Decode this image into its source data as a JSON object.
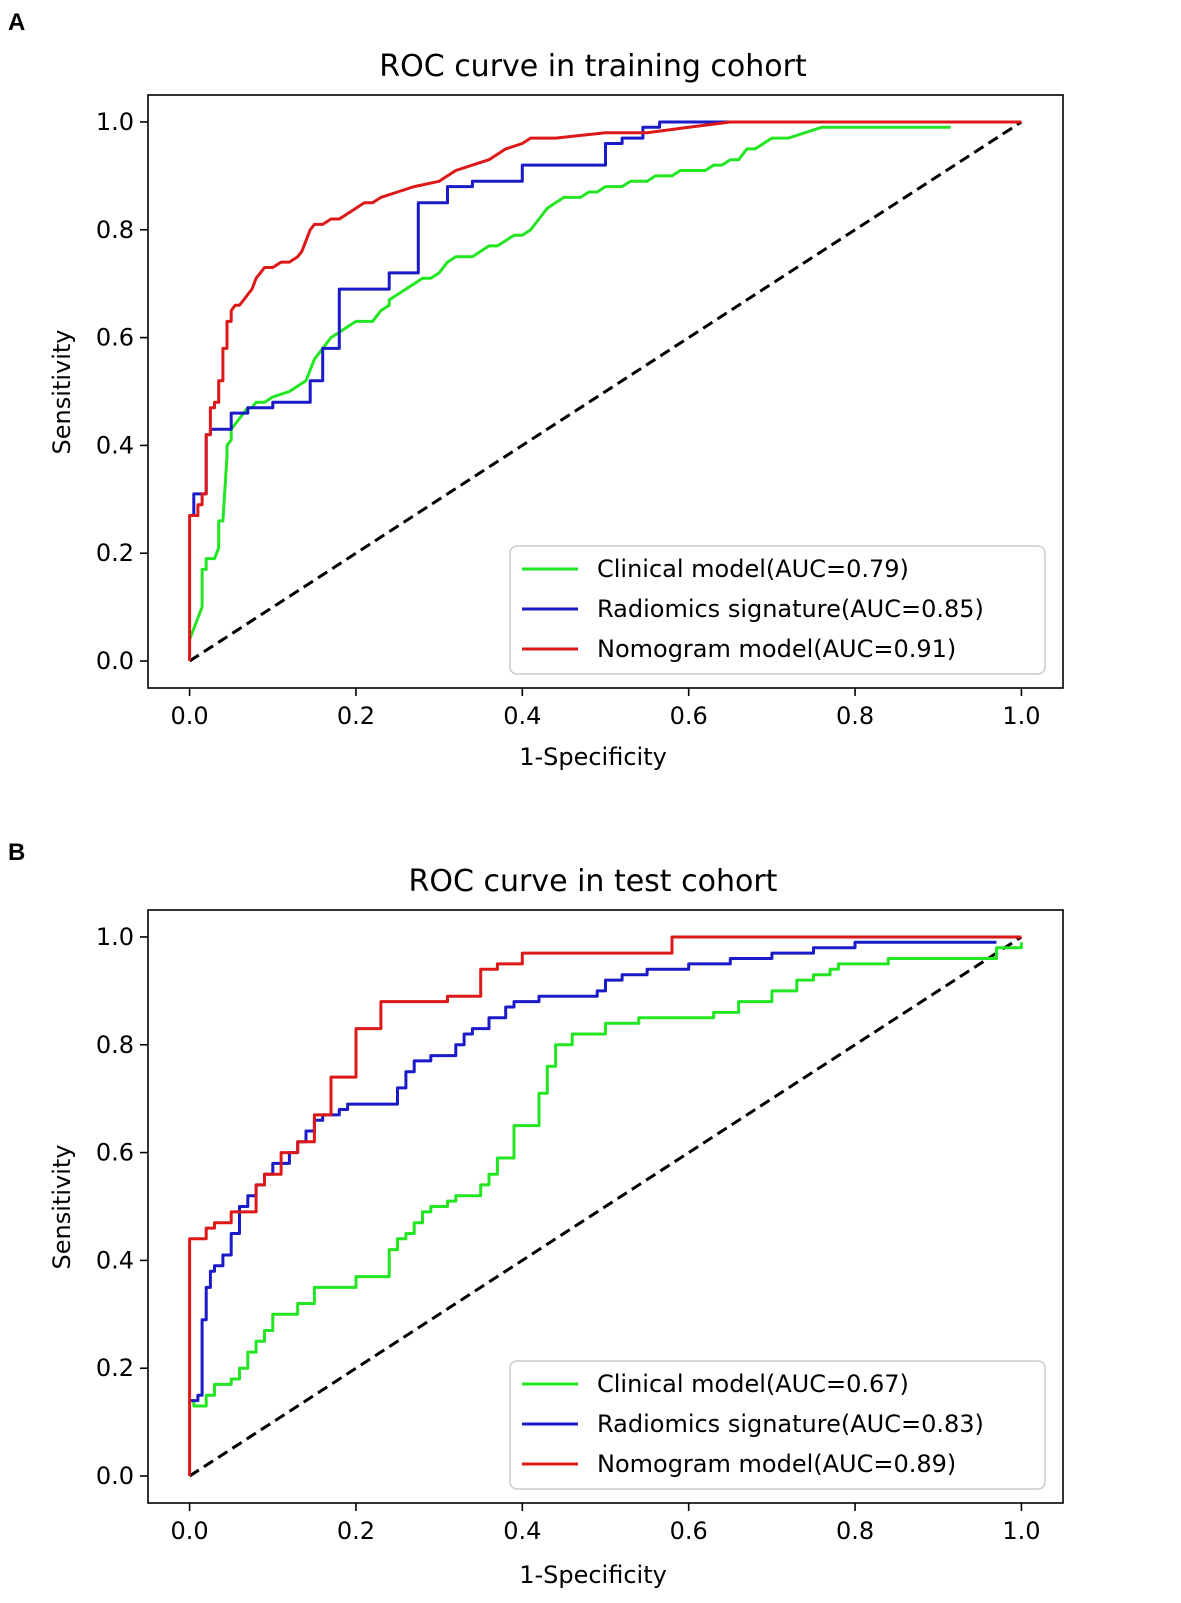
{
  "chart_data": [
    {
      "type": "line",
      "panel_label": "A",
      "title": "ROC curve in training cohort",
      "xlabel": "1-Specificity",
      "ylabel": "Sensitivity",
      "xlim": [
        -0.05,
        1.05
      ],
      "ylim": [
        -0.05,
        1.05
      ],
      "xticks": [
        "0.0",
        "0.2",
        "0.4",
        "0.6",
        "0.8",
        "1.0"
      ],
      "yticks": [
        "0.0",
        "0.2",
        "0.4",
        "0.6",
        "0.8",
        "1.0"
      ],
      "grid": false,
      "legend_position": "bottom-right",
      "reference_line": {
        "x": [
          0,
          1
        ],
        "y": [
          0,
          1
        ],
        "color": "#000000",
        "style": "dashed"
      },
      "series": [
        {
          "name": "Clinical model(AUC=0.79)",
          "color": "#22e622",
          "x": [
            0,
            0.005,
            0.01,
            0.015,
            0.015,
            0.02,
            0.02,
            0.03,
            0.035,
            0.035,
            0.04,
            0.045,
            0.045,
            0.05,
            0.05,
            0.06,
            0.065,
            0.07,
            0.075,
            0.08,
            0.085,
            0.09,
            0.1,
            0.12,
            0.14,
            0.15,
            0.16,
            0.17,
            0.18,
            0.19,
            0.2,
            0.21,
            0.22,
            0.23,
            0.24,
            0.24,
            0.25,
            0.26,
            0.27,
            0.28,
            0.29,
            0.3,
            0.31,
            0.32,
            0.33,
            0.34,
            0.35,
            0.36,
            0.37,
            0.38,
            0.39,
            0.4,
            0.41,
            0.42,
            0.43,
            0.44,
            0.45,
            0.46,
            0.47,
            0.48,
            0.49,
            0.5,
            0.51,
            0.52,
            0.53,
            0.54,
            0.55,
            0.56,
            0.57,
            0.58,
            0.59,
            0.6,
            0.61,
            0.62,
            0.63,
            0.64,
            0.65,
            0.66,
            0.67,
            0.68,
            0.69,
            0.7,
            0.72,
            0.74,
            0.76,
            0.78,
            0.8,
            0.85,
            0.915
          ],
          "y": [
            0.04,
            0.06,
            0.08,
            0.1,
            0.17,
            0.17,
            0.19,
            0.19,
            0.21,
            0.26,
            0.26,
            0.38,
            0.4,
            0.41,
            0.43,
            0.45,
            0.46,
            0.47,
            0.47,
            0.48,
            0.48,
            0.48,
            0.49,
            0.5,
            0.52,
            0.56,
            0.58,
            0.6,
            0.61,
            0.62,
            0.63,
            0.63,
            0.63,
            0.65,
            0.66,
            0.67,
            0.68,
            0.69,
            0.7,
            0.71,
            0.71,
            0.72,
            0.74,
            0.75,
            0.75,
            0.75,
            0.76,
            0.77,
            0.77,
            0.78,
            0.79,
            0.79,
            0.8,
            0.82,
            0.84,
            0.85,
            0.86,
            0.86,
            0.86,
            0.87,
            0.87,
            0.88,
            0.88,
            0.88,
            0.89,
            0.89,
            0.89,
            0.9,
            0.9,
            0.9,
            0.91,
            0.91,
            0.91,
            0.91,
            0.92,
            0.92,
            0.93,
            0.93,
            0.95,
            0.95,
            0.96,
            0.97,
            0.97,
            0.98,
            0.99,
            0.99,
            0.99,
            0.99,
            0.99
          ]
        },
        {
          "name": "Radiomics signature(AUC=0.85)",
          "color": "#1a1ac8",
          "x": [
            0,
            0.005,
            0.005,
            0.02,
            0.02,
            0.025,
            0.025,
            0.05,
            0.05,
            0.07,
            0.07,
            0.1,
            0.1,
            0.145,
            0.145,
            0.16,
            0.16,
            0.18,
            0.18,
            0.24,
            0.24,
            0.275,
            0.275,
            0.31,
            0.31,
            0.34,
            0.34,
            0.4,
            0.4,
            0.5,
            0.5,
            0.52,
            0.52,
            0.545,
            0.545,
            0.565,
            0.565,
            1.0
          ],
          "y": [
            0.27,
            0.27,
            0.31,
            0.31,
            0.42,
            0.42,
            0.43,
            0.43,
            0.46,
            0.46,
            0.47,
            0.47,
            0.48,
            0.48,
            0.52,
            0.52,
            0.58,
            0.58,
            0.69,
            0.69,
            0.72,
            0.72,
            0.85,
            0.85,
            0.88,
            0.88,
            0.89,
            0.89,
            0.92,
            0.92,
            0.96,
            0.96,
            0.97,
            0.97,
            0.99,
            0.99,
            1.0,
            1.0
          ]
        },
        {
          "name": "Nomogram model(AUC=0.91)",
          "color": "#dd1818",
          "x": [
            0,
            0,
            0.01,
            0.01,
            0.015,
            0.015,
            0.02,
            0.02,
            0.025,
            0.025,
            0.03,
            0.03,
            0.035,
            0.035,
            0.04,
            0.04,
            0.045,
            0.045,
            0.05,
            0.05,
            0.055,
            0.06,
            0.065,
            0.07,
            0.075,
            0.08,
            0.085,
            0.09,
            0.1,
            0.11,
            0.12,
            0.13,
            0.135,
            0.14,
            0.145,
            0.15,
            0.16,
            0.17,
            0.18,
            0.19,
            0.2,
            0.21,
            0.22,
            0.23,
            0.25,
            0.27,
            0.3,
            0.32,
            0.34,
            0.36,
            0.38,
            0.4,
            0.41,
            0.44,
            0.5,
            0.55,
            0.6,
            0.65,
            1.0
          ],
          "y": [
            0,
            0.27,
            0.27,
            0.29,
            0.29,
            0.31,
            0.31,
            0.42,
            0.42,
            0.47,
            0.47,
            0.48,
            0.48,
            0.52,
            0.52,
            0.58,
            0.58,
            0.63,
            0.63,
            0.65,
            0.66,
            0.66,
            0.67,
            0.68,
            0.69,
            0.71,
            0.72,
            0.73,
            0.73,
            0.74,
            0.74,
            0.75,
            0.76,
            0.78,
            0.8,
            0.81,
            0.81,
            0.82,
            0.82,
            0.83,
            0.84,
            0.85,
            0.85,
            0.86,
            0.87,
            0.88,
            0.89,
            0.91,
            0.92,
            0.93,
            0.95,
            0.96,
            0.97,
            0.97,
            0.98,
            0.98,
            0.99,
            1.0,
            1.0
          ]
        }
      ]
    },
    {
      "type": "line",
      "panel_label": "B",
      "title": "ROC curve in test cohort",
      "xlabel": "1-Specificity",
      "ylabel": "Sensitivity",
      "xlim": [
        -0.05,
        1.05
      ],
      "ylim": [
        -0.05,
        1.05
      ],
      "xticks": [
        "0.0",
        "0.2",
        "0.4",
        "0.6",
        "0.8",
        "1.0"
      ],
      "yticks": [
        "0.0",
        "0.2",
        "0.4",
        "0.6",
        "0.8",
        "1.0"
      ],
      "grid": false,
      "legend_position": "bottom-right",
      "reference_line": {
        "x": [
          0,
          1
        ],
        "y": [
          0,
          1
        ],
        "color": "#000000",
        "style": "dashed"
      },
      "series": [
        {
          "name": "Clinical model(AUC=0.67)",
          "color": "#22e622",
          "x": [
            0,
            0.005,
            0.005,
            0.02,
            0.02,
            0.03,
            0.03,
            0.05,
            0.05,
            0.06,
            0.06,
            0.07,
            0.07,
            0.08,
            0.08,
            0.09,
            0.09,
            0.1,
            0.1,
            0.13,
            0.13,
            0.15,
            0.15,
            0.18,
            0.18,
            0.2,
            0.2,
            0.24,
            0.24,
            0.25,
            0.25,
            0.26,
            0.26,
            0.27,
            0.27,
            0.28,
            0.28,
            0.29,
            0.29,
            0.3,
            0.3,
            0.31,
            0.31,
            0.32,
            0.32,
            0.35,
            0.35,
            0.36,
            0.36,
            0.37,
            0.37,
            0.38,
            0.38,
            0.39,
            0.39,
            0.42,
            0.42,
            0.43,
            0.43,
            0.44,
            0.44,
            0.45,
            0.45,
            0.46,
            0.46,
            0.47,
            0.47,
            0.5,
            0.5,
            0.54,
            0.54,
            0.6,
            0.6,
            0.63,
            0.63,
            0.66,
            0.66,
            0.7,
            0.7,
            0.73,
            0.73,
            0.75,
            0.75,
            0.76,
            0.76,
            0.77,
            0.77,
            0.78,
            0.78,
            0.8,
            0.8,
            0.82,
            0.82,
            0.84,
            0.84,
            0.86,
            0.86,
            0.97,
            0.97,
            1.0,
            1.0
          ],
          "y": [
            0.14,
            0.14,
            0.13,
            0.13,
            0.15,
            0.15,
            0.17,
            0.17,
            0.18,
            0.18,
            0.2,
            0.2,
            0.23,
            0.23,
            0.25,
            0.25,
            0.27,
            0.27,
            0.3,
            0.3,
            0.32,
            0.32,
            0.35,
            0.35,
            0.35,
            0.35,
            0.37,
            0.37,
            0.42,
            0.42,
            0.44,
            0.44,
            0.45,
            0.45,
            0.47,
            0.47,
            0.49,
            0.49,
            0.5,
            0.5,
            0.5,
            0.5,
            0.51,
            0.51,
            0.52,
            0.52,
            0.54,
            0.54,
            0.56,
            0.56,
            0.59,
            0.59,
            0.59,
            0.59,
            0.65,
            0.65,
            0.71,
            0.71,
            0.76,
            0.76,
            0.8,
            0.8,
            0.8,
            0.8,
            0.82,
            0.82,
            0.82,
            0.82,
            0.84,
            0.84,
            0.85,
            0.85,
            0.85,
            0.85,
            0.86,
            0.86,
            0.88,
            0.88,
            0.9,
            0.9,
            0.92,
            0.92,
            0.93,
            0.93,
            0.93,
            0.93,
            0.94,
            0.94,
            0.95,
            0.95,
            0.95,
            0.95,
            0.95,
            0.95,
            0.96,
            0.96,
            0.96,
            0.96,
            0.98,
            0.98,
            0.99
          ]
        },
        {
          "name": "Radiomics signature(AUC=0.83)",
          "color": "#1a1ac8",
          "x": [
            0,
            0.01,
            0.01,
            0.015,
            0.015,
            0.02,
            0.02,
            0.025,
            0.025,
            0.03,
            0.03,
            0.04,
            0.04,
            0.05,
            0.05,
            0.06,
            0.06,
            0.07,
            0.07,
            0.08,
            0.08,
            0.09,
            0.09,
            0.1,
            0.1,
            0.12,
            0.12,
            0.13,
            0.13,
            0.14,
            0.14,
            0.15,
            0.15,
            0.16,
            0.16,
            0.18,
            0.18,
            0.19,
            0.19,
            0.25,
            0.25,
            0.26,
            0.26,
            0.27,
            0.27,
            0.28,
            0.28,
            0.29,
            0.29,
            0.32,
            0.32,
            0.33,
            0.33,
            0.34,
            0.34,
            0.36,
            0.36,
            0.38,
            0.38,
            0.39,
            0.39,
            0.4,
            0.4,
            0.42,
            0.42,
            0.49,
            0.49,
            0.5,
            0.5,
            0.52,
            0.52,
            0.55,
            0.55,
            0.6,
            0.6,
            0.65,
            0.65,
            0.7,
            0.7,
            0.75,
            0.75,
            0.8,
            0.8,
            0.85,
            0.85,
            0.97
          ],
          "y": [
            0.14,
            0.14,
            0.15,
            0.15,
            0.29,
            0.29,
            0.35,
            0.35,
            0.38,
            0.38,
            0.39,
            0.39,
            0.41,
            0.41,
            0.45,
            0.45,
            0.5,
            0.5,
            0.52,
            0.52,
            0.54,
            0.54,
            0.56,
            0.56,
            0.58,
            0.58,
            0.6,
            0.6,
            0.62,
            0.62,
            0.64,
            0.64,
            0.66,
            0.66,
            0.67,
            0.67,
            0.68,
            0.68,
            0.69,
            0.69,
            0.72,
            0.72,
            0.75,
            0.75,
            0.77,
            0.77,
            0.77,
            0.77,
            0.78,
            0.78,
            0.8,
            0.8,
            0.82,
            0.82,
            0.83,
            0.83,
            0.85,
            0.85,
            0.87,
            0.87,
            0.88,
            0.88,
            0.88,
            0.88,
            0.89,
            0.89,
            0.9,
            0.9,
            0.92,
            0.92,
            0.93,
            0.93,
            0.94,
            0.94,
            0.95,
            0.95,
            0.96,
            0.96,
            0.97,
            0.97,
            0.98,
            0.98,
            0.99,
            0.99,
            0.99,
            0.99
          ]
        },
        {
          "name": "Nomogram model(AUC=0.89)",
          "color": "#dd1818",
          "x": [
            0,
            0,
            0.02,
            0.02,
            0.03,
            0.03,
            0.05,
            0.05,
            0.08,
            0.08,
            0.09,
            0.09,
            0.11,
            0.11,
            0.13,
            0.13,
            0.15,
            0.15,
            0.17,
            0.17,
            0.2,
            0.2,
            0.23,
            0.23,
            0.31,
            0.31,
            0.35,
            0.35,
            0.37,
            0.37,
            0.4,
            0.4,
            0.58,
            0.58,
            1.0
          ],
          "y": [
            0,
            0.44,
            0.44,
            0.46,
            0.46,
            0.47,
            0.47,
            0.49,
            0.49,
            0.54,
            0.54,
            0.56,
            0.56,
            0.6,
            0.6,
            0.62,
            0.62,
            0.67,
            0.67,
            0.74,
            0.74,
            0.83,
            0.83,
            0.88,
            0.88,
            0.89,
            0.89,
            0.94,
            0.94,
            0.95,
            0.95,
            0.97,
            0.97,
            1.0,
            1.0
          ]
        }
      ]
    }
  ]
}
